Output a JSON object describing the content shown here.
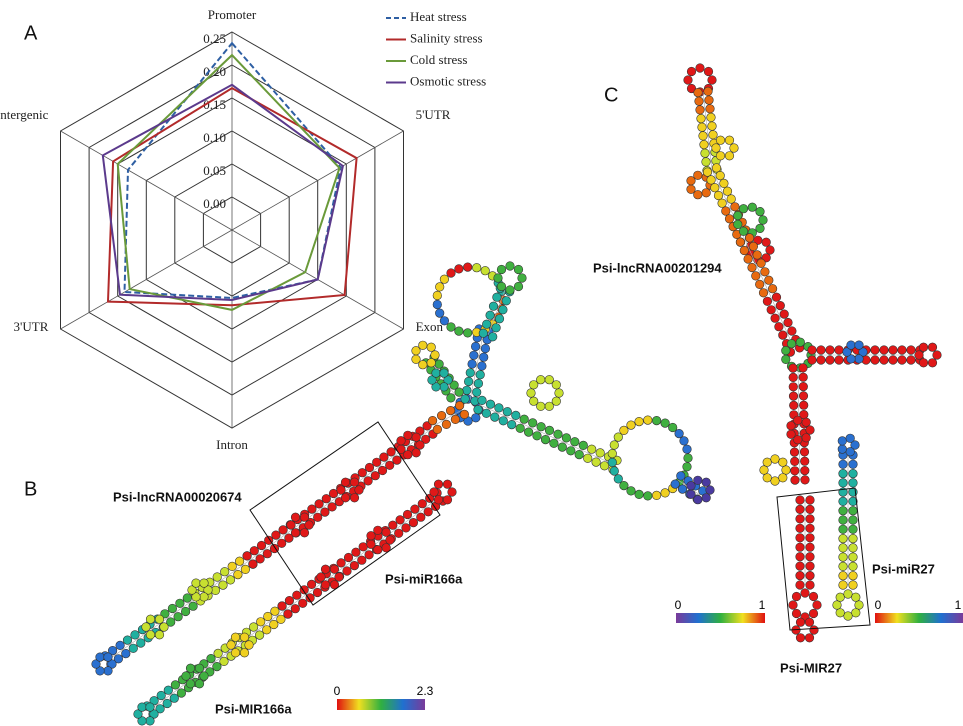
{
  "chart_data": {
    "type": "radar",
    "categories": [
      "Promoter",
      "5'UTR",
      "Exon",
      "Intron",
      "3'UTR",
      "Intergenic"
    ],
    "rlim": [
      -0.05,
      0.25
    ],
    "rticks": [
      {
        "value": 0,
        "label": "0.00"
      },
      {
        "value": 0.05,
        "label": "0.05"
      },
      {
        "value": 0.1,
        "label": "0.10"
      },
      {
        "value": 0.15,
        "label": "0.15"
      },
      {
        "value": 0.2,
        "label": "0.20"
      },
      {
        "value": 0.25,
        "label": "0.25"
      }
    ],
    "series": [
      {
        "name": "Heat stress",
        "color": "#2e5fa3",
        "line_style": "dashed",
        "values": [
          0.233,
          0.14,
          0.1,
          0.053,
          0.138,
          0.132
        ]
      },
      {
        "name": "Salinity stress",
        "color": "#b22a2a",
        "line_style": "solid",
        "values": [
          0.165,
          0.168,
          0.147,
          0.064,
          0.167,
          0.158
        ]
      },
      {
        "name": "Cold stress",
        "color": "#6a9a3a",
        "line_style": "solid",
        "values": [
          0.215,
          0.138,
          0.078,
          0.071,
          0.129,
          0.15
        ]
      },
      {
        "name": "Osmotic stress",
        "color": "#5b3a8c",
        "line_style": "solid",
        "values": [
          0.17,
          0.144,
          0.1,
          0.056,
          0.146,
          0.176
        ]
      }
    ],
    "legend": "top-right"
  },
  "panels": [
    "A",
    "B",
    "C"
  ],
  "structure_labels": [
    "Psi-lncRNA00020674",
    "Psi-miR166a",
    "Psi-MIR166a",
    "Psi-lncRNA00201294",
    "Psi-miR27",
    "Psi-MIR27"
  ],
  "color_scales": [
    {
      "min": 0,
      "max": 2.3
    },
    {
      "min": 0,
      "max": 1
    },
    {
      "min": 0,
      "max": 1
    }
  ]
}
